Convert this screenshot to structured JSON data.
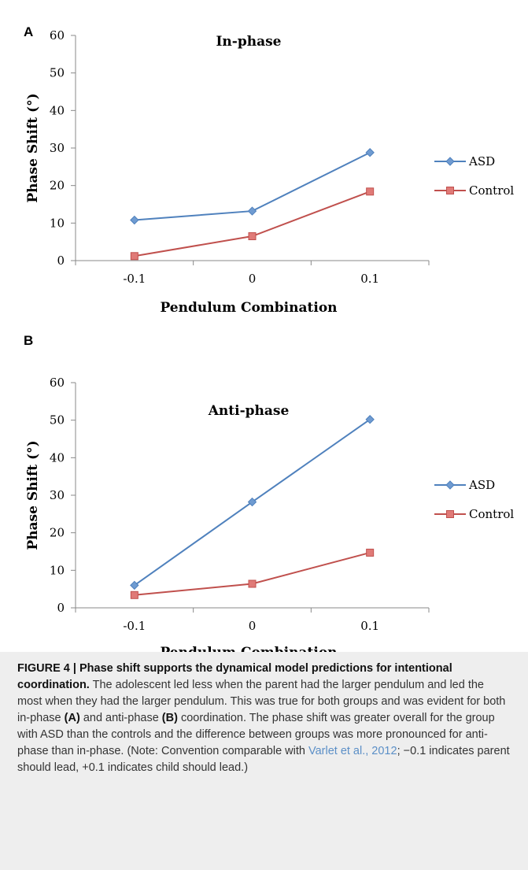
{
  "chart_data": [
    {
      "panel": "A",
      "type": "line",
      "title": "In-phase",
      "xlabel": "Pendulum Combination",
      "ylabel": "Phase Shift (°)",
      "categories": [
        "-0.1",
        "0",
        "0.1"
      ],
      "ylim": [
        0,
        60
      ],
      "yticks": [
        "0",
        "10",
        "20",
        "30",
        "40",
        "50",
        "60"
      ],
      "legend_position": "right",
      "grid": false,
      "series": [
        {
          "name": "ASD",
          "values": [
            10.8,
            13.2,
            28.8
          ],
          "color": "#4f81bd",
          "marker": "diamond"
        },
        {
          "name": "Control",
          "values": [
            1.2,
            6.5,
            18.4
          ],
          "color": "#c0504d",
          "marker": "square"
        }
      ]
    },
    {
      "panel": "B",
      "type": "line",
      "title": "Anti-phase",
      "xlabel": "Pendulum Combination",
      "ylabel": "Phase Shift (°)",
      "categories": [
        "-0.1",
        "0",
        "0.1"
      ],
      "ylim": [
        0,
        60
      ],
      "yticks": [
        "0",
        "10",
        "20",
        "30",
        "40",
        "50",
        "60"
      ],
      "legend_position": "right",
      "grid": false,
      "series": [
        {
          "name": "ASD",
          "values": [
            6.0,
            28.2,
            50.2
          ],
          "color": "#4f81bd",
          "marker": "diamond"
        },
        {
          "name": "Control",
          "values": [
            3.4,
            6.4,
            14.7
          ],
          "color": "#c0504d",
          "marker": "square"
        }
      ]
    }
  ],
  "caption": {
    "figure_label": "FIGURE 4 | Phase shift supports the dynamical model predictions for intentional coordination.",
    "text_1": " The adolescent led less when the parent had the larger pendulum and led the most when they had the larger pendulum. This was true for both groups and was evident for both in-phase ",
    "ref_a": "(A)",
    "text_2": " and anti-phase ",
    "ref_b": "(B)",
    "text_3": " coordination. The phase shift was greater overall for the group with ASD than the controls and the difference between groups was more pronounced for anti-phase than in-phase. (Note: Convention comparable with ",
    "citation": "Varlet et al., 2012",
    "text_4": "; −0.1 indicates parent should lead, +0.1 indicates child should lead.)"
  }
}
